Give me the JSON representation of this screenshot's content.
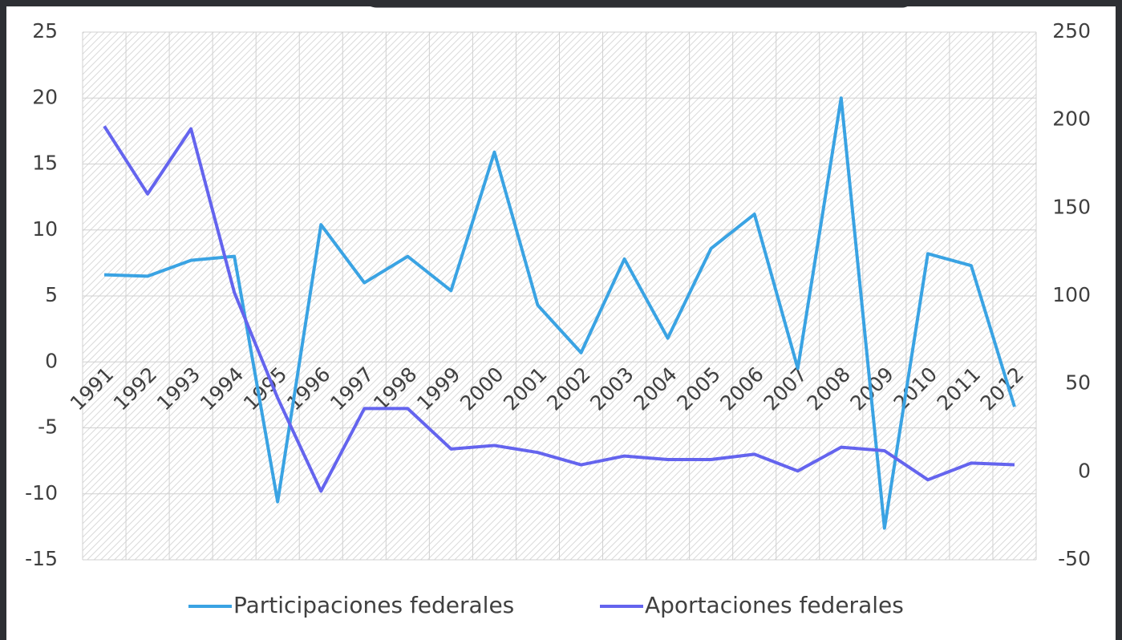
{
  "chart_data": {
    "type": "line",
    "categories": [
      "1991",
      "1992",
      "1993",
      "1994",
      "1995",
      "1996",
      "1997",
      "1998",
      "1999",
      "2000",
      "2001",
      "2002",
      "2003",
      "2004",
      "2005",
      "2006",
      "2007",
      "2008",
      "2009",
      "2010",
      "2011",
      "2012"
    ],
    "series": [
      {
        "name": "Participaciones federales",
        "color": "#3aa3e3",
        "axis": "y",
        "values": [
          6.6,
          6.5,
          7.7,
          8.0,
          -10.6,
          10.4,
          6.0,
          8.0,
          5.4,
          15.9,
          4.3,
          0.7,
          7.8,
          1.8,
          8.6,
          11.2,
          -0.5,
          20.0,
          -12.6,
          8.2,
          7.3,
          -3.4
        ]
      },
      {
        "name": "Aportaciones federales",
        "color": "#6464ee",
        "axis": "y2",
        "values": [
          196.5,
          158,
          195,
          102,
          42,
          -11,
          36,
          36,
          13,
          15,
          11,
          4,
          9,
          7,
          7,
          10,
          0.5,
          14,
          12,
          -4.5,
          5,
          4
        ]
      }
    ],
    "ylim": [
      -15,
      25
    ],
    "yticks": [
      -15,
      -10,
      -5,
      0,
      5,
      10,
      15,
      20,
      25
    ],
    "y2lim": [
      -50,
      250
    ],
    "y2ticks": [
      -50,
      0,
      50,
      100,
      150,
      200,
      250
    ],
    "grid": true,
    "legend": "bottom"
  }
}
